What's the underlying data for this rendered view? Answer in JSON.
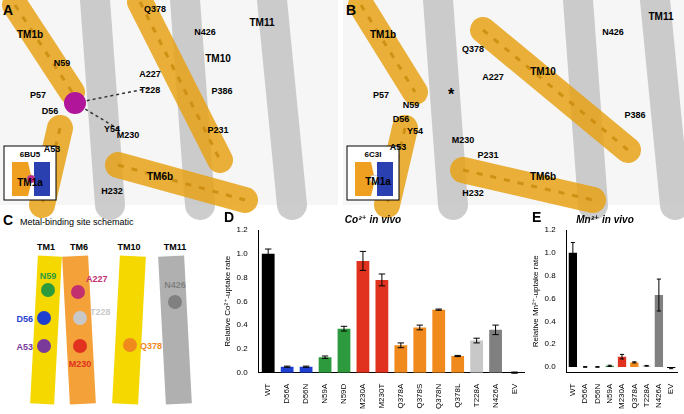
{
  "figure": {
    "panels": [
      {
        "letter": "A",
        "inset_label": "6BU5",
        "labels": [
          "TM1b",
          "N59",
          "P57",
          "D56",
          "A53",
          "TM1a",
          "Y54",
          "Q378",
          "N426",
          "TM11",
          "A227",
          "T228",
          "TM10",
          "P386",
          "M230",
          "P231",
          "H232",
          "TM6b"
        ]
      },
      {
        "letter": "B",
        "inset_label": "6C3I",
        "labels": [
          "TM1b",
          "P57",
          "N59",
          "D56",
          "Y54",
          "A53",
          "TM1a",
          "Q378",
          "A227",
          "*",
          "TM10",
          "N426",
          "TM11",
          "P386",
          "M230",
          "P231",
          "H232",
          "TM6b"
        ]
      },
      {
        "letter": "C",
        "title": "Metal-binding site schematic",
        "helices": [
          "TM1",
          "TM6",
          "TM10",
          "TM11"
        ],
        "residues": [
          {
            "label": "N59",
            "color": "#2e9a3e"
          },
          {
            "label": "A227",
            "color": "#c2306e"
          },
          {
            "label": "T228",
            "color": "#c8c8c8"
          },
          {
            "label": "D56",
            "color": "#1f3fd0"
          },
          {
            "label": "N426",
            "color": "#808080"
          },
          {
            "label": "Q378",
            "color": "#f08a1c"
          },
          {
            "label": "A53",
            "color": "#7a3a9a"
          },
          {
            "label": "M230",
            "color": "#e0321e"
          }
        ]
      }
    ]
  },
  "chart_data": [
    {
      "type": "bar",
      "annotations": [
        "D"
      ],
      "title": "Co²⁺ in vivo",
      "y_label": "Relative Co²⁺-uptake rate",
      "categories": [
        "WT",
        "D56A",
        "D56N",
        "N59A",
        "N59D",
        "M230A",
        "M230T",
        "Q378A",
        "Q378S",
        "Q378N",
        "Q378L",
        "T228A",
        "N426A",
        "EV"
      ],
      "values": [
        1.0,
        0.05,
        0.05,
        0.13,
        0.37,
        0.94,
        0.78,
        0.23,
        0.38,
        0.53,
        0.14,
        0.27,
        0.36,
        0.0
      ],
      "errors": [
        0.04,
        0.005,
        0.005,
        0.01,
        0.02,
        0.08,
        0.05,
        0.02,
        0.02,
        0.005,
        0.005,
        0.02,
        0.04,
        0.005
      ],
      "colors": [
        "#000000",
        "#1f3fd0",
        "#1f3fd0",
        "#2e9a3e",
        "#2e9a3e",
        "#e0321e",
        "#e0321e",
        "#f08a1c",
        "#f08a1c",
        "#f08a1c",
        "#f08a1c",
        "#c8c8c8",
        "#808080",
        "#000000"
      ],
      "ylim": [
        0,
        1.2
      ],
      "yticks": [
        {
          "value": 0,
          "label": "0.0"
        },
        {
          "value": 0.2,
          "label": "0.2"
        },
        {
          "value": 0.4,
          "label": "0.4"
        },
        {
          "value": 0.6,
          "label": "0.6"
        },
        {
          "value": 0.8,
          "label": "0.8"
        },
        {
          "value": 1.0,
          "label": "1.0"
        },
        {
          "value": 1.2,
          "label": "1.2"
        }
      ],
      "grid": false
    },
    {
      "type": "bar",
      "annotations": [
        "E"
      ],
      "title": "Mn²⁺ in vivo",
      "y_label": "Relative Mn²⁺-uptake rate",
      "categories": [
        "WT",
        "D56A",
        "D56N",
        "N59A",
        "M230A",
        "Q378A",
        "T228A",
        "N426A",
        "EV"
      ],
      "values": [
        1.0,
        0.0,
        0.0,
        0.01,
        0.09,
        0.04,
        0.01,
        0.63,
        -0.01
      ],
      "errors": [
        0.09,
        0.003,
        0.003,
        0.005,
        0.02,
        0.005,
        0.003,
        0.14,
        0.005
      ],
      "colors": [
        "#000000",
        "#1f3fd0",
        "#1f3fd0",
        "#2e9a3e",
        "#e0321e",
        "#f08a1c",
        "#c8c8c8",
        "#808080",
        "#000000"
      ],
      "ylim": [
        -0.05,
        1.2
      ],
      "yticks": [
        {
          "value": 0,
          "label": "0.0"
        },
        {
          "value": 0.2,
          "label": "0.2"
        },
        {
          "value": 0.4,
          "label": "0.4"
        },
        {
          "value": 0.6,
          "label": "0.6"
        },
        {
          "value": 0.8,
          "label": "0.8"
        },
        {
          "value": 1.0,
          "label": "1.0"
        },
        {
          "value": 1.2,
          "label": "1.2"
        }
      ],
      "grid": false
    }
  ]
}
